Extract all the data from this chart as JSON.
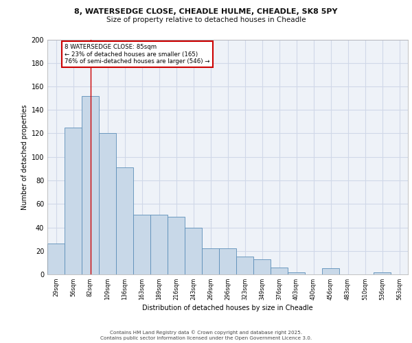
{
  "title1": "8, WATERSEDGE CLOSE, CHEADLE HULME, CHEADLE, SK8 5PY",
  "title2": "Size of property relative to detached houses in Cheadle",
  "xlabel": "Distribution of detached houses by size in Cheadle",
  "ylabel": "Number of detached properties",
  "categories": [
    "29sqm",
    "56sqm",
    "82sqm",
    "109sqm",
    "136sqm",
    "163sqm",
    "189sqm",
    "216sqm",
    "243sqm",
    "269sqm",
    "296sqm",
    "323sqm",
    "349sqm",
    "376sqm",
    "403sqm",
    "430sqm",
    "456sqm",
    "483sqm",
    "510sqm",
    "536sqm",
    "563sqm"
  ],
  "values": [
    26,
    125,
    152,
    120,
    91,
    51,
    51,
    49,
    40,
    22,
    22,
    15,
    13,
    6,
    2,
    0,
    5,
    0,
    0,
    2,
    0
  ],
  "bar_color": "#c8d8e8",
  "bar_edge_color": "#5b8db8",
  "red_line_index": 2,
  "annotation_text": "8 WATERSEDGE CLOSE: 85sqm\n← 23% of detached houses are smaller (165)\n76% of semi-detached houses are larger (546) →",
  "annotation_box_color": "#ffffff",
  "annotation_box_edge_color": "#cc0000",
  "ylim": [
    0,
    200
  ],
  "yticks": [
    0,
    20,
    40,
    60,
    80,
    100,
    120,
    140,
    160,
    180,
    200
  ],
  "grid_color": "#d0d8e8",
  "background_color": "#eef2f8",
  "footer1": "Contains HM Land Registry data © Crown copyright and database right 2025.",
  "footer2": "Contains public sector information licensed under the Open Government Licence 3.0."
}
